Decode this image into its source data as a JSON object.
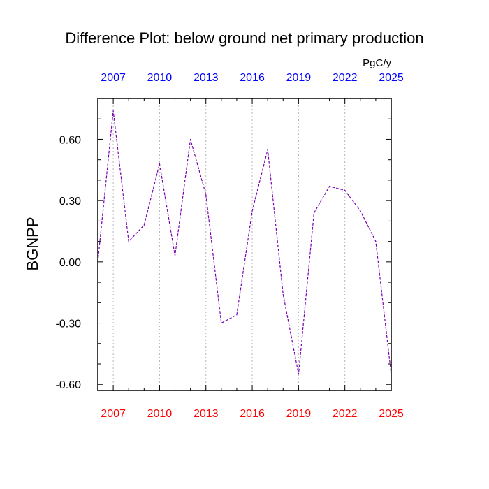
{
  "chart_data": {
    "type": "line",
    "title": "Difference Plot: below ground net primary production",
    "units": "PgC/y",
    "ylabel": "BGNPP",
    "xlabel": "",
    "xlim": [
      2006,
      2025
    ],
    "ylim": [
      -0.63,
      0.8
    ],
    "yticks": [
      0.6,
      0.3,
      0.0,
      -0.3,
      -0.6
    ],
    "ytick_labels": [
      "0.60",
      "0.30",
      "0.00",
      "-0.30",
      "-0.60"
    ],
    "xticks": [
      2007,
      2010,
      2013,
      2016,
      2019,
      2022,
      2025
    ],
    "xtick_labels_top": [
      "2007",
      "2010",
      "2013",
      "2016",
      "2019",
      "2022",
      "2025"
    ],
    "xtick_labels_bottom": [
      "2007",
      "2010",
      "2013",
      "2016",
      "2019",
      "2022",
      "2025"
    ],
    "top_label_color": "#0000ff",
    "bottom_label_color": "#ff0000",
    "line_color": "#7a00b4",
    "line_style": "dashed",
    "grid": "vertical dotted at major x ticks",
    "series": [
      {
        "x": [
          2006,
          2007,
          2008,
          2009,
          2010,
          2011,
          2012,
          2013,
          2014,
          2015,
          2016,
          2017,
          2018,
          2019,
          2020,
          2021,
          2022,
          2023,
          2024,
          2025
        ],
        "values": [
          0.0,
          0.74,
          0.1,
          0.18,
          0.48,
          0.03,
          0.6,
          0.33,
          -0.3,
          -0.26,
          0.25,
          0.55,
          -0.16,
          -0.55,
          0.24,
          0.37,
          0.35,
          0.25,
          0.1,
          -0.55
        ]
      }
    ]
  }
}
